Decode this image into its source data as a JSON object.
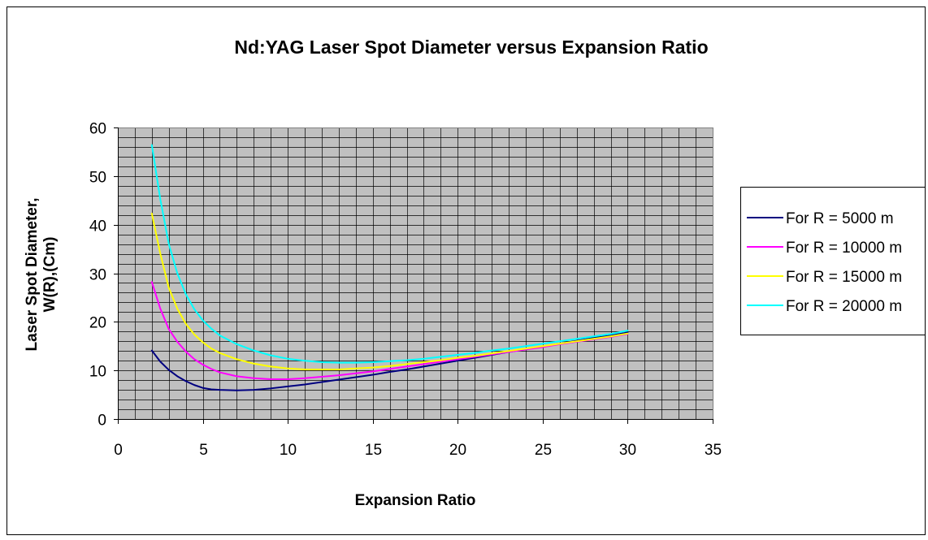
{
  "chart_data": {
    "type": "line",
    "title": "Nd:YAG Laser Spot Diameter versus Expansion Ratio",
    "xlabel": "Expansion Ratio",
    "ylabel_lines": [
      "Laser Spot Diameter,",
      "W(R),(Cm)"
    ],
    "xlim": [
      0,
      35
    ],
    "ylim": [
      0,
      60
    ],
    "xticks": [
      0,
      5,
      10,
      15,
      20,
      25,
      30,
      35
    ],
    "yticks": [
      0,
      10,
      20,
      30,
      40,
      50,
      60
    ],
    "x_minor_step": 1,
    "y_minor_step": 2,
    "grid": true,
    "legend_position": "right",
    "plot_background": "#c0c0c0",
    "grid_color": "#000000",
    "x": [
      2,
      2.5,
      3,
      3.5,
      4,
      4.5,
      5,
      5.5,
      6,
      7,
      8,
      9,
      10,
      11,
      12,
      13,
      14,
      15,
      16,
      17,
      18,
      19,
      20,
      21,
      22,
      23,
      24,
      25,
      26,
      27,
      28,
      29,
      30
    ],
    "series": [
      {
        "name": "For R = 5000 m",
        "color": "#000080",
        "values": [
          14.1,
          11.8,
          10.1,
          8.8,
          7.8,
          7.0,
          6.4,
          6.1,
          6.0,
          5.9,
          6.0,
          6.3,
          6.7,
          7.1,
          7.6,
          8.1,
          8.6,
          9.1,
          9.7,
          10.2,
          10.8,
          11.4,
          12.0,
          12.6,
          13.2,
          13.8,
          14.4,
          14.9,
          15.5,
          16.1,
          16.7,
          17.2,
          17.8
        ]
      },
      {
        "name": "For R = 10000 m",
        "color": "#ff00ff",
        "values": [
          28.2,
          22.7,
          18.5,
          15.9,
          13.9,
          12.3,
          11.2,
          10.3,
          9.6,
          8.8,
          8.4,
          8.2,
          8.2,
          8.4,
          8.7,
          9.0,
          9.4,
          9.8,
          10.3,
          10.8,
          11.3,
          11.8,
          12.3,
          12.8,
          13.3,
          13.8,
          14.3,
          14.8,
          15.4,
          15.9,
          16.4,
          16.9,
          17.5
        ]
      },
      {
        "name": "For R = 15000 m",
        "color": "#ffff00",
        "values": [
          42.3,
          34.0,
          27.0,
          22.7,
          19.6,
          17.4,
          15.8,
          14.5,
          13.6,
          12.3,
          11.4,
          10.8,
          10.4,
          10.2,
          10.2,
          10.2,
          10.4,
          10.6,
          10.9,
          11.3,
          11.7,
          12.1,
          12.6,
          13.0,
          13.5,
          14.0,
          14.5,
          15.0,
          15.5,
          16.0,
          16.5,
          17.0,
          17.6
        ]
      },
      {
        "name": "For R = 20000 m",
        "color": "#00ffff",
        "values": [
          56.4,
          45.2,
          36.0,
          30.0,
          25.7,
          22.6,
          20.3,
          18.6,
          17.2,
          15.4,
          14.1,
          13.1,
          12.4,
          12.0,
          11.7,
          11.6,
          11.6,
          11.7,
          11.9,
          12.1,
          12.4,
          12.8,
          13.2,
          13.6,
          14.1,
          14.5,
          15.0,
          15.5,
          16.0,
          16.5,
          17.0,
          17.5,
          18.2
        ]
      }
    ]
  }
}
